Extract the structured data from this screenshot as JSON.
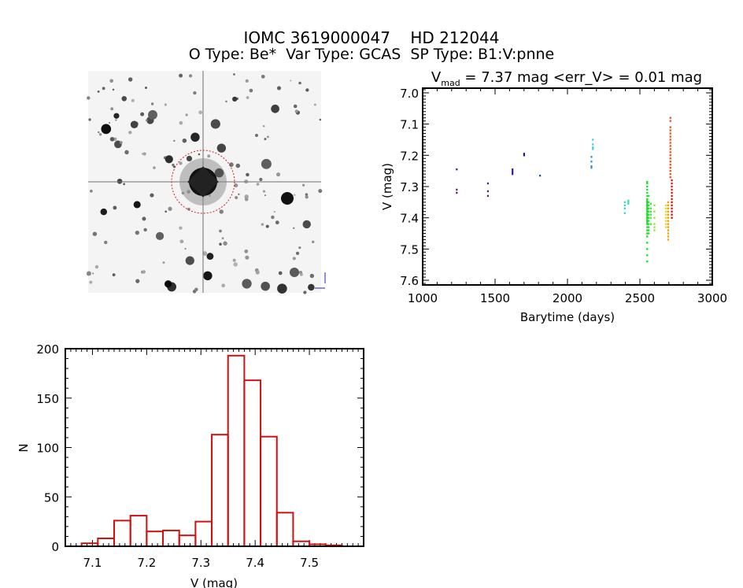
{
  "header": {
    "title": "IOMC 3619000047    HD 212044",
    "subtitle": "O Type: Be*  Var Type: GCAS  SP Type: B1:V:pnne"
  },
  "chart_data": [
    {
      "type": "scatter",
      "title_prefix": "V",
      "title_sub": "mad",
      "title_rest": " = 7.37 mag <err_V> = 0.01 mag",
      "xlabel": "Barytime (days)",
      "ylabel": "V (mag)",
      "xlim": [
        1000,
        3000
      ],
      "ylim": [
        7.615,
        6.985
      ],
      "y_inverted": true,
      "xticks": [
        "1000",
        "1500",
        "2000",
        "2500",
        "3000"
      ],
      "yticks": [
        "7.0",
        "7.1",
        "7.2",
        "7.3",
        "7.4",
        "7.5",
        "7.6"
      ],
      "groups": [
        {
          "x": 1235,
          "color": "#5a1a78",
          "y": [
            7.245,
            7.31,
            7.32
          ]
        },
        {
          "x": 1450,
          "color": "#5a1a78",
          "y": [
            7.29,
            7.315,
            7.33
          ]
        },
        {
          "x": 1620,
          "color": "#3a1a9a",
          "y": [
            7.245,
            7.25,
            7.255,
            7.26
          ]
        },
        {
          "x": 1700,
          "color": "#1a1aa0",
          "y": [
            7.195,
            7.2
          ]
        },
        {
          "x": 1810,
          "color": "#1a44b0",
          "y": [
            7.265
          ]
        },
        {
          "x": 2165,
          "color": "#2a90d0",
          "y": [
            7.205,
            7.22,
            7.235,
            7.24
          ]
        },
        {
          "x": 2175,
          "color": "#40c8e0",
          "y": [
            7.15,
            7.165,
            7.175,
            7.18
          ]
        },
        {
          "x": 2395,
          "color": "#30d8c8",
          "y": [
            7.35,
            7.36,
            7.37,
            7.385
          ]
        },
        {
          "x": 2420,
          "color": "#30e0b0",
          "y": [
            7.345,
            7.35,
            7.355
          ]
        },
        {
          "x": 2550,
          "color": "#10e020",
          "y": [
            7.285,
            7.29,
            7.3,
            7.31,
            7.32,
            7.33,
            7.34,
            7.345,
            7.35,
            7.355,
            7.36,
            7.365,
            7.37,
            7.375,
            7.38,
            7.385,
            7.39,
            7.395,
            7.4,
            7.405,
            7.41,
            7.415,
            7.42,
            7.43,
            7.44,
            7.45,
            7.46,
            7.48,
            7.5,
            7.52,
            7.54
          ]
        },
        {
          "x": 2560,
          "color": "#20e030",
          "y": [
            7.33,
            7.35,
            7.36,
            7.37,
            7.38,
            7.39,
            7.4,
            7.41,
            7.42,
            7.43,
            7.44,
            7.45
          ]
        },
        {
          "x": 2575,
          "color": "#50e040",
          "y": [
            7.355,
            7.37,
            7.38,
            7.39,
            7.4,
            7.42
          ]
        },
        {
          "x": 2600,
          "color": "#90e040",
          "y": [
            7.36,
            7.38,
            7.4,
            7.42,
            7.43,
            7.44
          ]
        },
        {
          "x": 2680,
          "color": "#e0d020",
          "y": [
            7.36,
            7.37,
            7.38,
            7.39,
            7.4,
            7.41,
            7.42,
            7.43
          ]
        },
        {
          "x": 2695,
          "color": "#f0a000",
          "y": [
            7.35,
            7.36,
            7.37,
            7.38,
            7.39,
            7.4,
            7.41,
            7.42,
            7.43,
            7.44,
            7.45,
            7.46,
            7.47
          ]
        },
        {
          "x": 2710,
          "color": "#e05020",
          "y": [
            7.08,
            7.09,
            7.11,
            7.12,
            7.13,
            7.14,
            7.15,
            7.16,
            7.17,
            7.18,
            7.19,
            7.2,
            7.21,
            7.22,
            7.23,
            7.24,
            7.25,
            7.26,
            7.27
          ]
        },
        {
          "x": 2720,
          "color": "#d01010",
          "y": [
            7.28,
            7.29,
            7.3,
            7.31,
            7.32,
            7.33,
            7.34,
            7.35,
            7.36,
            7.37,
            7.38,
            7.39,
            7.4
          ]
        }
      ]
    },
    {
      "type": "bar",
      "subtype": "histogram",
      "xlabel": "V (mag)",
      "ylabel": "N",
      "xlim": [
        7.05,
        7.6
      ],
      "ylim": [
        0,
        200
      ],
      "xticks": [
        "7.1",
        "7.2",
        "7.3",
        "7.4",
        "7.5"
      ],
      "yticks": [
        "0",
        "50",
        "100",
        "150",
        "200"
      ],
      "bin_start": 7.08,
      "bin_width": 0.03,
      "values": [
        3,
        8,
        26,
        31,
        15,
        16,
        11,
        25,
        113,
        193,
        168,
        111,
        34,
        5,
        2,
        1
      ],
      "color": "#d01010"
    }
  ],
  "finder_image": {
    "description_icon": "star-field-image",
    "marker_color": "#d02020"
  }
}
